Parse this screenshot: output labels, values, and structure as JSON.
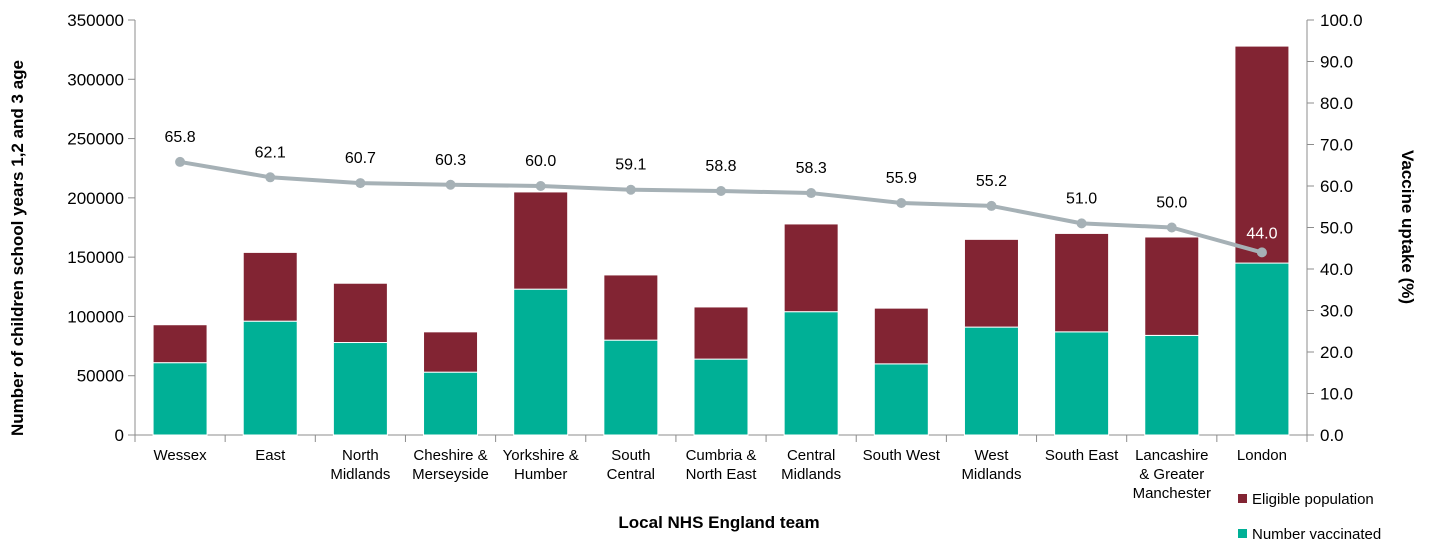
{
  "chart_data": {
    "type": "bar",
    "stacked": true,
    "categories": [
      "Wessex",
      "East",
      "North Midlands",
      "Cheshire & Merseyside",
      "Yorkshire & Humber",
      "South Central",
      "Cumbria & North East",
      "Central Midlands",
      "South West",
      "West Midlands",
      "South East",
      "Lancashire & Greater Manchester",
      "London"
    ],
    "category_lines": [
      [
        "Wessex"
      ],
      [
        "East"
      ],
      [
        "North",
        "Midlands"
      ],
      [
        "Cheshire &",
        "Merseyside"
      ],
      [
        "Yorkshire &",
        "Humber"
      ],
      [
        "South",
        "Central"
      ],
      [
        "Cumbria &",
        "North East"
      ],
      [
        "Central",
        "Midlands"
      ],
      [
        "South West"
      ],
      [
        "West",
        "Midlands"
      ],
      [
        "South East"
      ],
      [
        "Lancashire",
        "& Greater",
        "Manchester"
      ],
      [
        "London"
      ]
    ],
    "series": [
      {
        "name": "Number vaccinated",
        "type": "bar",
        "color": "#00b096",
        "values": [
          61000,
          96000,
          78000,
          53000,
          123000,
          80000,
          64000,
          104000,
          60000,
          91000,
          87000,
          84000,
          145000
        ]
      },
      {
        "name": "Eligible population",
        "type": "bar",
        "color": "#822433",
        "values": [
          32000,
          58000,
          50000,
          34000,
          82000,
          55000,
          44000,
          74000,
          47000,
          74000,
          83000,
          83000,
          183000
        ]
      },
      {
        "name": "",
        "type": "line",
        "axis": "right",
        "color": "#a6b1b6",
        "values": [
          65.8,
          62.1,
          60.7,
          60.3,
          60.0,
          59.1,
          58.8,
          58.3,
          55.9,
          55.2,
          51.0,
          50.0,
          44.0
        ],
        "labels": [
          "65.8",
          "62.1",
          "60.7",
          "60.3",
          "60.0",
          "59.1",
          "58.8",
          "58.3",
          "55.9",
          "55.2",
          "51.0",
          "50.0",
          "44.0"
        ]
      }
    ],
    "title": "",
    "xlabel": "Local NHS England team",
    "ylabel": "Number of children school years 1,2 and 3 age",
    "y2label": "Vaccine uptake (%)",
    "ylim": [
      0,
      350000
    ],
    "y2lim": [
      0,
      100
    ],
    "yticks": [
      "0",
      "50000",
      "100000",
      "150000",
      "200000",
      "250000",
      "300000",
      "350000"
    ],
    "y2ticks": [
      "0.0",
      "10.0",
      "20.0",
      "30.0",
      "40.0",
      "50.0",
      "60.0",
      "70.0",
      "80.0",
      "90.0",
      "100.0"
    ],
    "grid": false,
    "legend": {
      "placement": "bottom-right",
      "items": [
        {
          "label": "Eligible population",
          "color": "#822433"
        },
        {
          "label": "Number vaccinated",
          "color": "#00b096"
        }
      ]
    }
  }
}
